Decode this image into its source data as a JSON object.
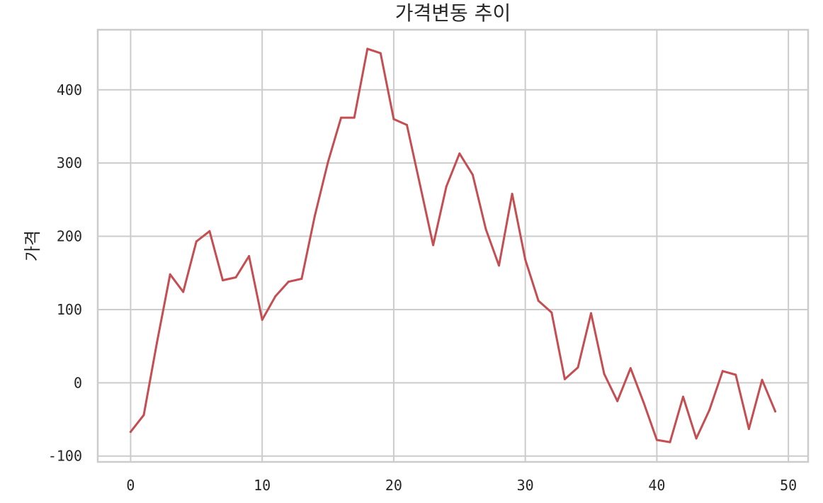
{
  "chart_data": {
    "type": "line",
    "title": "가격변동 추이",
    "xlabel": "",
    "ylabel": "가격",
    "xlim": [
      -2.5,
      51.5
    ],
    "ylim": [
      -108,
      482
    ],
    "xticks": [
      0,
      10,
      20,
      30,
      40,
      50
    ],
    "yticks": [
      -100,
      0,
      100,
      200,
      300,
      400
    ],
    "grid": true,
    "legend": "none",
    "series": [
      {
        "color": "#c44e52",
        "x": [
          0,
          1,
          2,
          3,
          4,
          5,
          6,
          7,
          8,
          9,
          10,
          11,
          12,
          13,
          14,
          15,
          16,
          17,
          18,
          19,
          20,
          21,
          22,
          23,
          24,
          25,
          26,
          27,
          28,
          29,
          30,
          31,
          32,
          33,
          34,
          35,
          36,
          37,
          38,
          39,
          40,
          41,
          42,
          43,
          44,
          45,
          46,
          47,
          48,
          49
        ],
        "y": [
          -67,
          -44,
          55,
          148,
          124,
          193,
          207,
          140,
          144,
          173,
          86,
          118,
          138,
          142,
          228,
          301,
          362,
          362,
          456,
          450,
          360,
          352,
          270,
          188,
          268,
          313,
          284,
          210,
          160,
          258,
          168,
          112,
          96,
          5,
          21,
          95,
          12,
          -25,
          20,
          -27,
          -78,
          -81,
          -19,
          -76,
          -37,
          16,
          11,
          -63,
          4,
          -39
        ]
      }
    ]
  }
}
